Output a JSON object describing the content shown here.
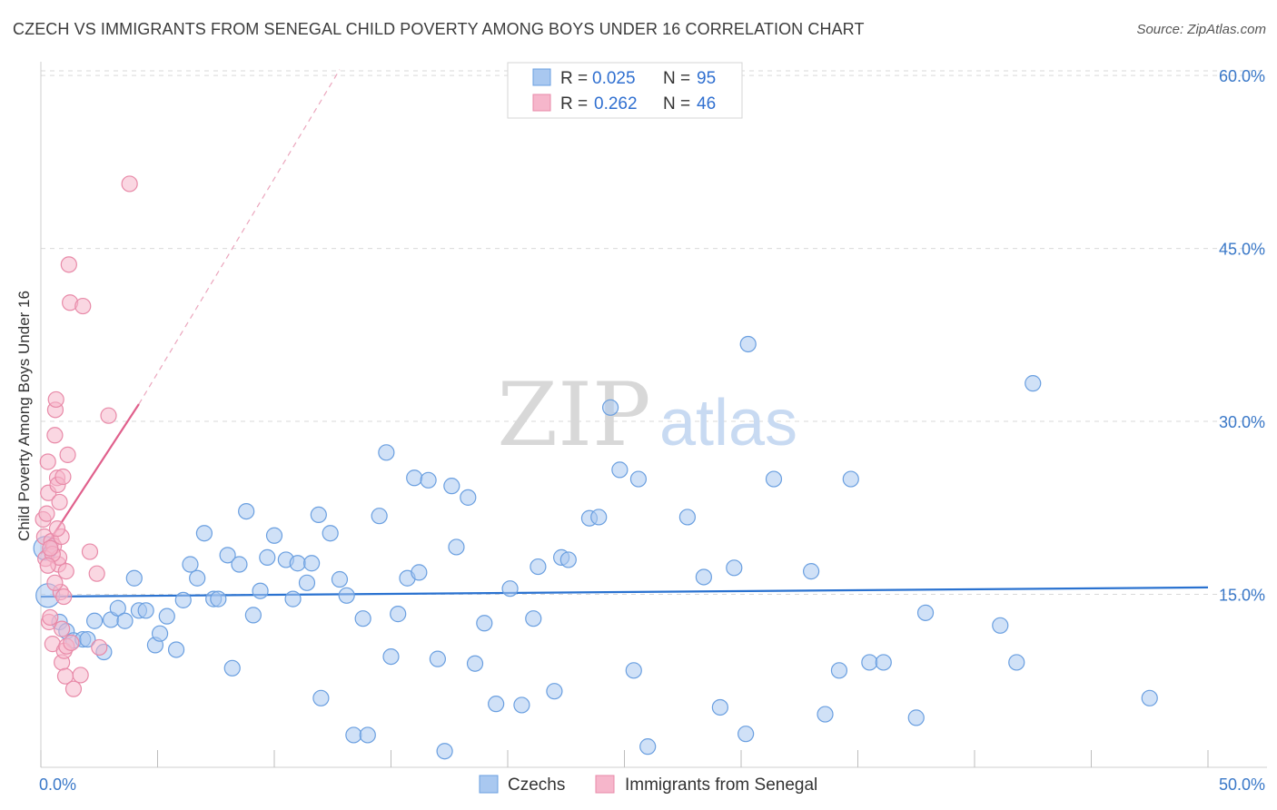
{
  "title": "CZECH VS IMMIGRANTS FROM SENEGAL CHILD POVERTY AMONG BOYS UNDER 16 CORRELATION CHART",
  "source": "Source: ZipAtlas.com",
  "watermark": {
    "zip": "ZIP",
    "atlas": "atlas"
  },
  "colors": {
    "blue_fill": "#a9c8f0",
    "blue_stroke": "#6a9fe0",
    "blue_line": "#2a72d0",
    "pink_fill": "#f6b6cb",
    "pink_stroke": "#e88aa8",
    "pink_line": "#e0608c",
    "axis_label": "#3a78c8",
    "grid": "#d9d9d9",
    "value_text": "#2f6fd0"
  },
  "legend_top": [
    {
      "r_label": "R =",
      "r_value": "0.025",
      "n_label": "N =",
      "n_value": "95",
      "series": "blue"
    },
    {
      "r_label": "R =",
      "r_value": "0.262",
      "n_label": "N =",
      "n_value": "46",
      "series": "pink"
    }
  ],
  "chart_data": {
    "type": "scatter",
    "title": "CZECH VS IMMIGRANTS FROM SENEGAL CHILD POVERTY AMONG BOYS UNDER 16 CORRELATION CHART",
    "xlabel": "",
    "ylabel": "Child Poverty Among Boys Under 16",
    "xlim": [
      0,
      50
    ],
    "ylim": [
      0,
      63
    ],
    "x_tick_labels": [
      {
        "value": 0,
        "label": "0.0%"
      },
      {
        "value": 50,
        "label": "50.0%"
      }
    ],
    "y_tick_labels": [
      {
        "value": 15,
        "label": "15.0%"
      },
      {
        "value": 30,
        "label": "30.0%"
      },
      {
        "value": 45,
        "label": "45.0%"
      },
      {
        "value": 60,
        "label": "60.0%"
      }
    ],
    "x_minor_ticks": [
      0,
      5,
      10,
      15,
      20,
      25,
      30,
      35,
      40,
      45,
      50
    ],
    "series": [
      {
        "name": "Czechs",
        "color": "blue",
        "trend": {
          "x": [
            0,
            50
          ],
          "y": [
            14.8,
            15.6
          ],
          "style": "solid"
        },
        "points": [
          {
            "x": 0.2,
            "y": 19.0,
            "big": true
          },
          {
            "x": 0.3,
            "y": 14.9,
            "big": true
          },
          {
            "x": 0.8,
            "y": 12.6
          },
          {
            "x": 1.1,
            "y": 11.8
          },
          {
            "x": 1.4,
            "y": 11.0
          },
          {
            "x": 1.8,
            "y": 11.1
          },
          {
            "x": 2.0,
            "y": 11.1
          },
          {
            "x": 2.3,
            "y": 12.7
          },
          {
            "x": 2.7,
            "y": 10.0
          },
          {
            "x": 3.0,
            "y": 12.8
          },
          {
            "x": 3.3,
            "y": 13.8
          },
          {
            "x": 3.6,
            "y": 12.7
          },
          {
            "x": 4.0,
            "y": 16.4
          },
          {
            "x": 4.2,
            "y": 13.6
          },
          {
            "x": 4.5,
            "y": 13.6
          },
          {
            "x": 4.9,
            "y": 10.6
          },
          {
            "x": 5.1,
            "y": 11.6
          },
          {
            "x": 5.4,
            "y": 13.1
          },
          {
            "x": 5.8,
            "y": 10.2
          },
          {
            "x": 6.1,
            "y": 14.5
          },
          {
            "x": 6.4,
            "y": 17.6
          },
          {
            "x": 6.7,
            "y": 16.4
          },
          {
            "x": 7.0,
            "y": 20.3
          },
          {
            "x": 7.4,
            "y": 14.6
          },
          {
            "x": 7.6,
            "y": 14.6
          },
          {
            "x": 8.0,
            "y": 18.4
          },
          {
            "x": 8.2,
            "y": 8.6
          },
          {
            "x": 8.5,
            "y": 17.6
          },
          {
            "x": 8.8,
            "y": 22.2
          },
          {
            "x": 9.1,
            "y": 13.2
          },
          {
            "x": 9.4,
            "y": 15.3
          },
          {
            "x": 9.7,
            "y": 18.2
          },
          {
            "x": 10.0,
            "y": 20.1
          },
          {
            "x": 10.5,
            "y": 18.0
          },
          {
            "x": 10.8,
            "y": 14.6
          },
          {
            "x": 11.0,
            "y": 17.7
          },
          {
            "x": 11.4,
            "y": 16.0
          },
          {
            "x": 11.6,
            "y": 17.7
          },
          {
            "x": 11.9,
            "y": 21.9
          },
          {
            "x": 12.0,
            "y": 6.0
          },
          {
            "x": 12.4,
            "y": 20.3
          },
          {
            "x": 12.8,
            "y": 16.3
          },
          {
            "x": 13.1,
            "y": 14.9
          },
          {
            "x": 13.4,
            "y": 2.8
          },
          {
            "x": 13.8,
            "y": 12.9
          },
          {
            "x": 14.0,
            "y": 2.8
          },
          {
            "x": 14.5,
            "y": 21.8
          },
          {
            "x": 14.8,
            "y": 27.3
          },
          {
            "x": 15.0,
            "y": 9.6
          },
          {
            "x": 15.3,
            "y": 13.3
          },
          {
            "x": 15.7,
            "y": 16.4
          },
          {
            "x": 16.0,
            "y": 25.1
          },
          {
            "x": 16.2,
            "y": 16.9
          },
          {
            "x": 16.6,
            "y": 24.9
          },
          {
            "x": 17.0,
            "y": 9.4
          },
          {
            "x": 17.3,
            "y": 1.4
          },
          {
            "x": 17.6,
            "y": 24.4
          },
          {
            "x": 17.8,
            "y": 19.1
          },
          {
            "x": 18.3,
            "y": 23.4
          },
          {
            "x": 18.6,
            "y": 9.0
          },
          {
            "x": 19.0,
            "y": 12.5
          },
          {
            "x": 19.5,
            "y": 5.5
          },
          {
            "x": 20.1,
            "y": 15.5
          },
          {
            "x": 20.6,
            "y": 5.4
          },
          {
            "x": 21.1,
            "y": 12.9
          },
          {
            "x": 21.3,
            "y": 17.4
          },
          {
            "x": 22.0,
            "y": 6.6
          },
          {
            "x": 22.3,
            "y": 18.2
          },
          {
            "x": 22.6,
            "y": 18.0
          },
          {
            "x": 23.5,
            "y": 21.6
          },
          {
            "x": 23.9,
            "y": 21.7
          },
          {
            "x": 24.4,
            "y": 31.2
          },
          {
            "x": 24.8,
            "y": 25.8
          },
          {
            "x": 25.4,
            "y": 8.4
          },
          {
            "x": 25.6,
            "y": 25.0
          },
          {
            "x": 26.0,
            "y": 1.8
          },
          {
            "x": 27.7,
            "y": 21.7
          },
          {
            "x": 28.4,
            "y": 16.5
          },
          {
            "x": 29.1,
            "y": 5.2
          },
          {
            "x": 29.7,
            "y": 17.3
          },
          {
            "x": 30.2,
            "y": 2.9
          },
          {
            "x": 30.3,
            "y": 36.7
          },
          {
            "x": 31.4,
            "y": 25.0
          },
          {
            "x": 33.0,
            "y": 17.0
          },
          {
            "x": 33.6,
            "y": 4.6
          },
          {
            "x": 34.2,
            "y": 8.4
          },
          {
            "x": 34.7,
            "y": 25.0
          },
          {
            "x": 35.5,
            "y": 9.1
          },
          {
            "x": 36.1,
            "y": 9.1
          },
          {
            "x": 37.5,
            "y": 4.3
          },
          {
            "x": 37.9,
            "y": 13.4
          },
          {
            "x": 41.1,
            "y": 12.3
          },
          {
            "x": 41.8,
            "y": 9.1
          },
          {
            "x": 42.5,
            "y": 33.3
          },
          {
            "x": 47.5,
            "y": 6.0
          }
        ]
      },
      {
        "name": "Immigrants from Senegal",
        "color": "pink",
        "trend": {
          "x": [
            0,
            4.2
          ],
          "y": [
            18.5,
            31.5
          ],
          "style": "solid",
          "extension": {
            "x": [
              4.2,
              12.8
            ],
            "y": [
              31.5,
              60.5
            ],
            "style": "dashed"
          }
        },
        "points": [
          {
            "x": 0.1,
            "y": 21.5
          },
          {
            "x": 0.15,
            "y": 20.0
          },
          {
            "x": 0.2,
            "y": 18.1
          },
          {
            "x": 0.25,
            "y": 22.0
          },
          {
            "x": 0.3,
            "y": 26.5
          },
          {
            "x": 0.32,
            "y": 23.8
          },
          {
            "x": 0.35,
            "y": 12.6
          },
          {
            "x": 0.4,
            "y": 13.0
          },
          {
            "x": 0.45,
            "y": 19.6
          },
          {
            "x": 0.5,
            "y": 10.7
          },
          {
            "x": 0.55,
            "y": 19.2
          },
          {
            "x": 0.6,
            "y": 28.8
          },
          {
            "x": 0.62,
            "y": 31.0
          },
          {
            "x": 0.65,
            "y": 31.9
          },
          {
            "x": 0.7,
            "y": 25.1
          },
          {
            "x": 0.72,
            "y": 24.5
          },
          {
            "x": 0.75,
            "y": 17.6
          },
          {
            "x": 0.78,
            "y": 18.2
          },
          {
            "x": 0.8,
            "y": 23.0
          },
          {
            "x": 0.85,
            "y": 15.2
          },
          {
            "x": 0.88,
            "y": 20.0
          },
          {
            "x": 0.9,
            "y": 9.1
          },
          {
            "x": 0.95,
            "y": 25.2
          },
          {
            "x": 0.98,
            "y": 14.8
          },
          {
            "x": 1.0,
            "y": 10.1
          },
          {
            "x": 1.05,
            "y": 7.9
          },
          {
            "x": 1.08,
            "y": 17.0
          },
          {
            "x": 1.1,
            "y": 10.5
          },
          {
            "x": 1.15,
            "y": 27.1
          },
          {
            "x": 1.2,
            "y": 43.6
          },
          {
            "x": 1.25,
            "y": 40.3
          },
          {
            "x": 1.3,
            "y": 10.8
          },
          {
            "x": 1.4,
            "y": 6.8
          },
          {
            "x": 1.7,
            "y": 8.0
          },
          {
            "x": 1.8,
            "y": 40.0
          },
          {
            "x": 2.1,
            "y": 18.7
          },
          {
            "x": 2.4,
            "y": 16.8
          },
          {
            "x": 2.5,
            "y": 10.4
          },
          {
            "x": 2.9,
            "y": 30.5
          },
          {
            "x": 3.8,
            "y": 50.6
          },
          {
            "x": 0.5,
            "y": 18.5
          },
          {
            "x": 0.6,
            "y": 16.0
          },
          {
            "x": 0.7,
            "y": 20.7
          },
          {
            "x": 0.4,
            "y": 19.0
          },
          {
            "x": 0.3,
            "y": 17.5
          },
          {
            "x": 0.9,
            "y": 12.0
          }
        ]
      }
    ],
    "legend_bottom": [
      "Czechs",
      "Immigrants from Senegal"
    ]
  }
}
